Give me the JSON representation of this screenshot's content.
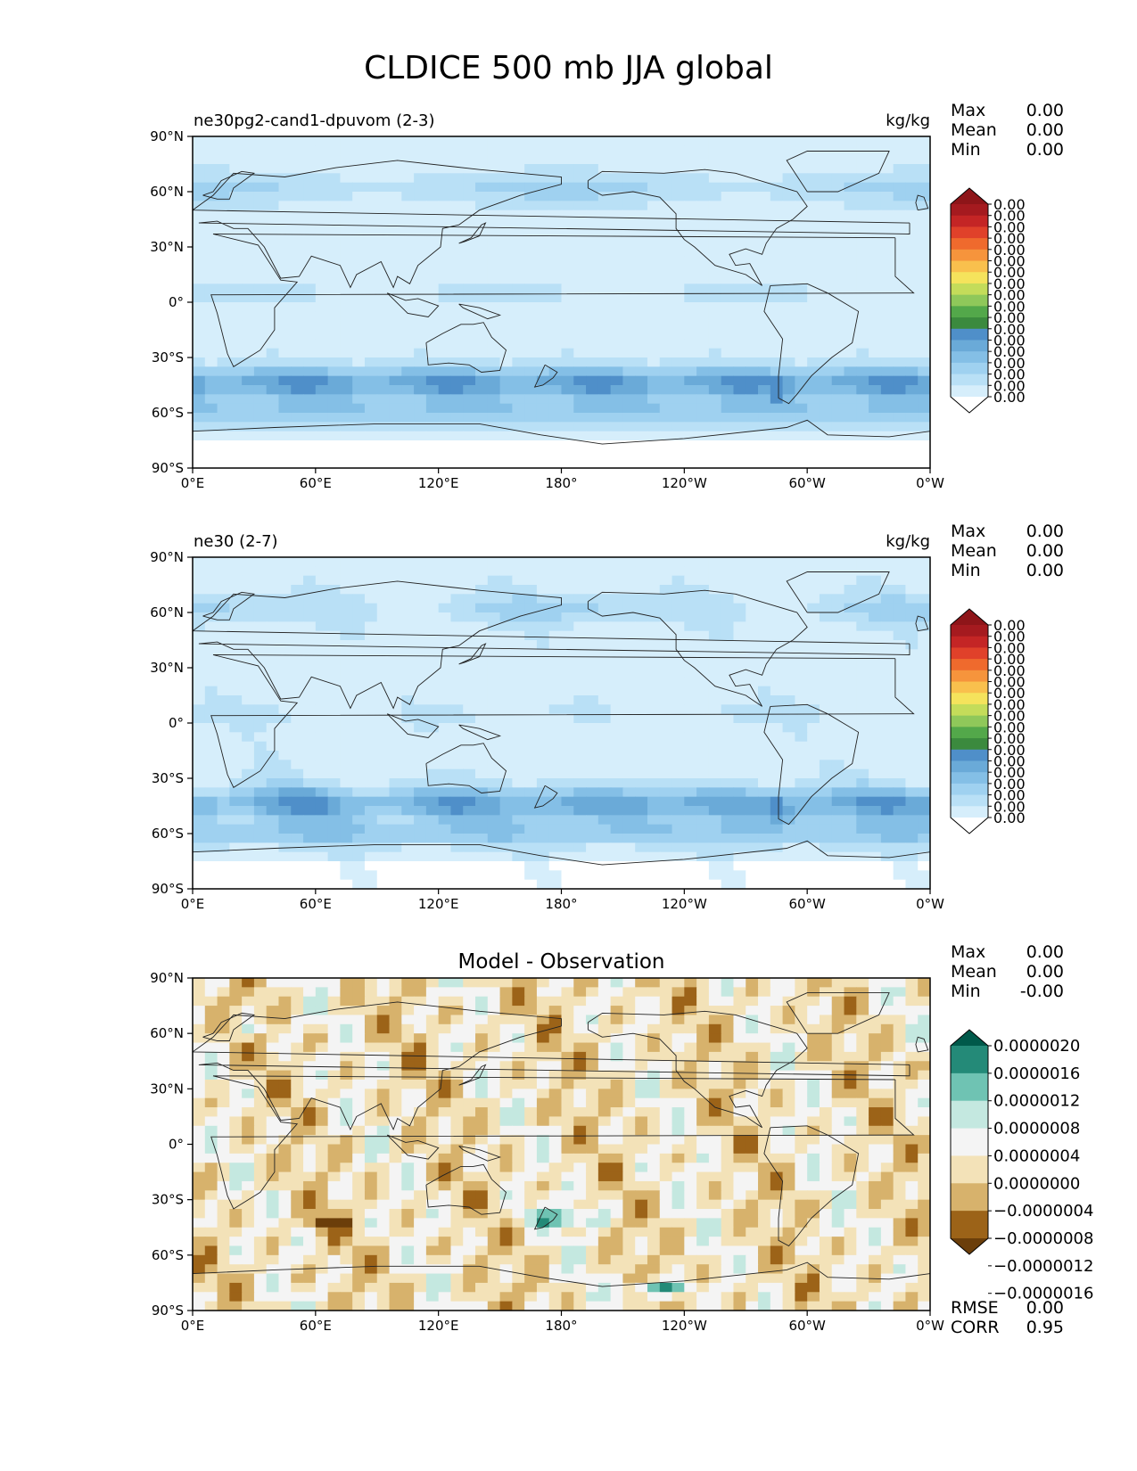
{
  "title": "CLDICE 500 mb JJA global",
  "axes": {
    "x_ticks": [
      "0°E",
      "60°E",
      "120°E",
      "180°",
      "120°W",
      "60°W",
      "0°W"
    ],
    "y_ticks": [
      "90°N",
      "60°N",
      "30°N",
      "0°",
      "30°S",
      "60°S",
      "90°S"
    ]
  },
  "stat_labels": {
    "max": "Max",
    "mean": "Mean",
    "min": "Min",
    "rmse": "RMSE",
    "corr": "CORR"
  },
  "chart_data": [
    {
      "type": "heatmap",
      "panel": "test",
      "title_left": "ne30pg2-cand1-dpuvom (2-3)",
      "title_center": "",
      "units": "kg/kg",
      "stats": {
        "max": "0.00",
        "mean": "0.00",
        "min": "0.00"
      },
      "colorbar": {
        "extend": "both",
        "colors": [
          "#ffffff",
          "#d6eefb",
          "#b9e0f6",
          "#9fd1f0",
          "#84bfe6",
          "#6aaad8",
          "#4f8fc9",
          "#3b8a3e",
          "#53a84a",
          "#8fc85a",
          "#c4dc5a",
          "#f5e35c",
          "#f9c04d",
          "#f6943c",
          "#ef6a2d",
          "#e0412a",
          "#c42525",
          "#a51a1f",
          "#8e1519"
        ],
        "tick_labels": [
          "0.00",
          "0.00",
          "0.00",
          "0.00",
          "0.00",
          "0.00",
          "0.00",
          "0.00",
          "0.00",
          "0.00",
          "0.00",
          "0.00",
          "0.00",
          "0.00",
          "0.00",
          "0.00",
          "0.00",
          "0.00"
        ]
      },
      "x_range": [
        0,
        360
      ],
      "y_range": [
        -90,
        90
      ]
    },
    {
      "type": "heatmap",
      "panel": "reference",
      "title_left": "ne30 (2-7)",
      "title_center": "",
      "units": "kg/kg",
      "stats": {
        "max": "0.00",
        "mean": "0.00",
        "min": "0.00"
      },
      "colorbar": {
        "extend": "both",
        "colors": [
          "#ffffff",
          "#d6eefb",
          "#b9e0f6",
          "#9fd1f0",
          "#84bfe6",
          "#6aaad8",
          "#4f8fc9",
          "#3b8a3e",
          "#53a84a",
          "#8fc85a",
          "#c4dc5a",
          "#f5e35c",
          "#f9c04d",
          "#f6943c",
          "#ef6a2d",
          "#e0412a",
          "#c42525",
          "#a51a1f",
          "#8e1519"
        ],
        "tick_labels": [
          "0.00",
          "0.00",
          "0.00",
          "0.00",
          "0.00",
          "0.00",
          "0.00",
          "0.00",
          "0.00",
          "0.00",
          "0.00",
          "0.00",
          "0.00",
          "0.00",
          "0.00",
          "0.00",
          "0.00",
          "0.00"
        ]
      },
      "x_range": [
        0,
        360
      ],
      "y_range": [
        -90,
        90
      ]
    },
    {
      "type": "heatmap",
      "panel": "difference",
      "title_left": "",
      "title_center": "Model - Observation",
      "units": "",
      "stats": {
        "max": "0.00",
        "mean": "0.00",
        "min": "-0.00",
        "rmse": "0.00",
        "corr": "0.95"
      },
      "colorbar": {
        "extend": "both",
        "colors": [
          "#6b3e0a",
          "#9c6318",
          "#d7b26c",
          "#f3e2b8",
          "#f4f4f4",
          "#c4e8e0",
          "#6fc3b3",
          "#248a78",
          "#00594a"
        ],
        "tick_labels": [
          "−0.0000016",
          "−0.0000012",
          "−0.0000008",
          "−0.0000004",
          "0.0000000",
          "0.0000004",
          "0.0000008",
          "0.0000012",
          "0.0000016",
          "0.0000020"
        ]
      },
      "x_range": [
        0,
        360
      ],
      "y_range": [
        -90,
        90
      ]
    }
  ]
}
